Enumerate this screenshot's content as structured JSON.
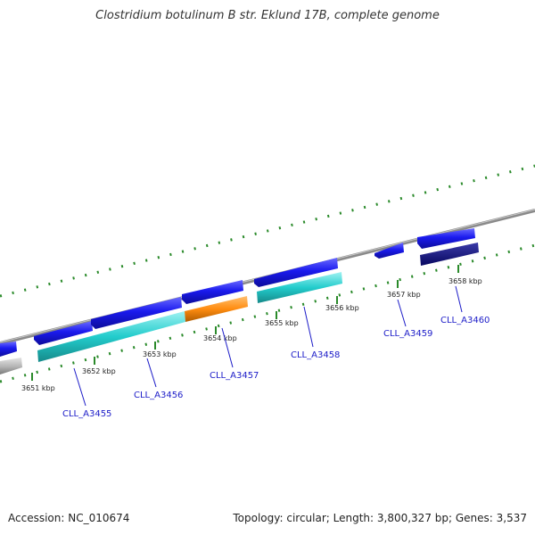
{
  "title": "Clostridium botulinum B str. Eklund 17B, complete genome",
  "footer": {
    "accession": "Accession: NC_010674",
    "summary": "Topology: circular; Length: 3,800,327 bp; Genes: 3,537"
  },
  "colors": {
    "backbone": "#8a8a8a",
    "tick": "#2a8a2a",
    "gene_forward": "#1a1aee",
    "gene_dark": "#101080",
    "cds_cyan": "#22cccc",
    "cds_orange": "#ff8c10",
    "cds_grey": "#b8b8b8",
    "label": "#1c1cc8"
  },
  "ticks": [
    "3651 kbp",
    "3652 kbp",
    "3653 kbp",
    "3654 kbp",
    "3655 kbp",
    "3656 kbp",
    "3657 kbp",
    "3658 kbp"
  ],
  "genes": [
    "CLL_A3455",
    "CLL_A3456",
    "CLL_A3457",
    "CLL_A3458",
    "CLL_A3459",
    "CLL_A3460"
  ]
}
